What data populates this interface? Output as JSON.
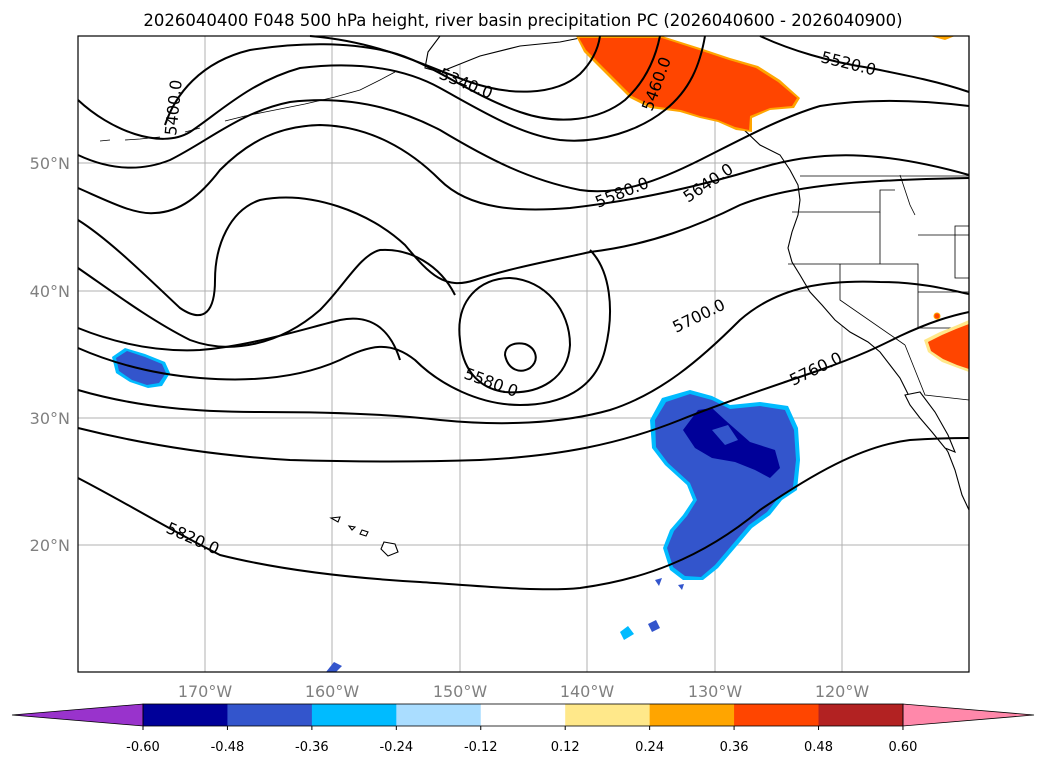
{
  "title": "2026040400 F048 500 hPa height, river basin precipitation PC (2026040600 - 2026040900)",
  "map": {
    "lat_labels": [
      "50°N",
      "40°N",
      "30°N",
      "20°N"
    ],
    "lon_labels": [
      "170°W",
      "160°W",
      "150°W",
      "140°W",
      "130°W",
      "120°W"
    ],
    "contour_labels": [
      "5340.0",
      "5400.0",
      "5460.0",
      "5520.0",
      "5580.0",
      "5640.0",
      "5700.0",
      "5580.0",
      "5760.0",
      "5820.0"
    ]
  },
  "colorbar": {
    "colors": [
      "#9933cc",
      "#000099",
      "#3355cc",
      "#00bbff",
      "#aaddff",
      "#ffffff",
      "#ffe88a",
      "#ffa500",
      "#ff4500",
      "#b22222",
      "#ff88aa",
      "#ff88aa"
    ],
    "tick_labels": [
      "-0.60",
      "-0.48",
      "-0.36",
      "-0.24",
      "-0.12",
      "0.12",
      "0.24",
      "0.36",
      "0.48",
      "0.60"
    ]
  },
  "legend_colors": {
    "dark_blue": "#000099",
    "blue": "#3355cc",
    "cyan": "#00bbff",
    "red_orange": "#ff4500",
    "orange": "#ffa500",
    "yellow": "#ffe88a"
  }
}
